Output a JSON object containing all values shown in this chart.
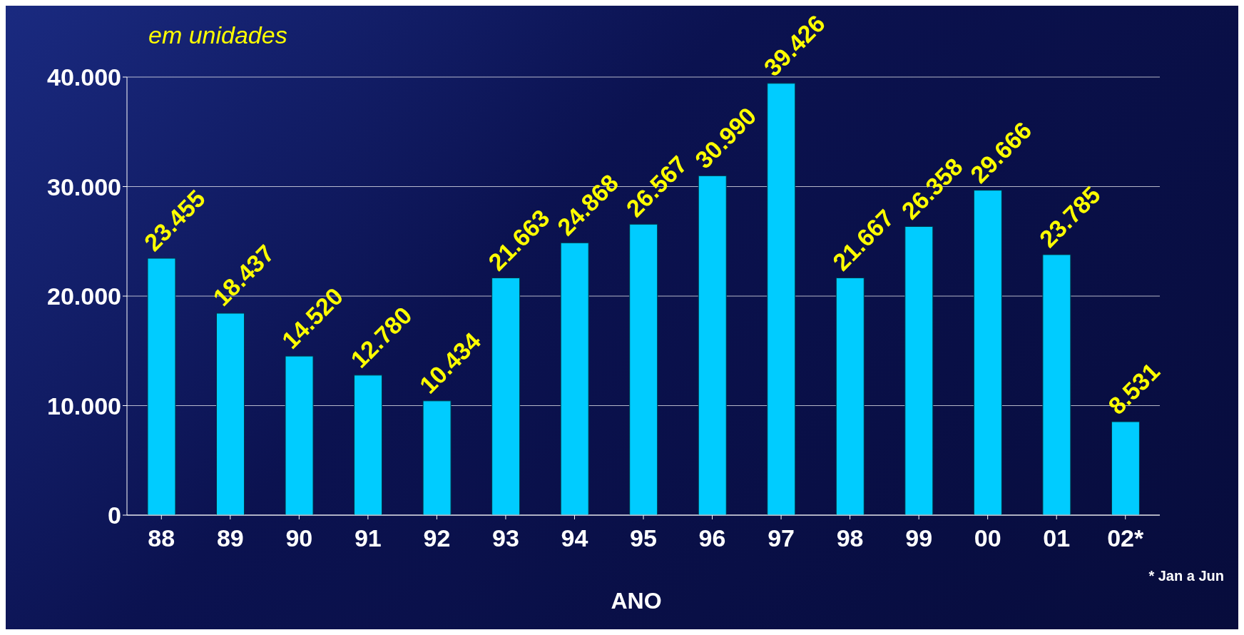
{
  "chart_data": {
    "type": "bar",
    "ylabel": "em unidades",
    "xlabel": "ANO",
    "annotations": [
      "* Jan a Jun"
    ],
    "categories": [
      "88",
      "89",
      "90",
      "91",
      "92",
      "93",
      "94",
      "95",
      "96",
      "97",
      "98",
      "99",
      "00",
      "01",
      "02*"
    ],
    "values": [
      23455,
      18437,
      14520,
      12780,
      10434,
      21663,
      24868,
      26567,
      30990,
      39426,
      21667,
      26358,
      29666,
      23785,
      8531
    ],
    "value_labels": [
      "23.455",
      "18.437",
      "14.520",
      "12.780",
      "10.434",
      "21.663",
      "24.868",
      "26.567",
      "30.990",
      "39.426",
      "21.667",
      "26.358",
      "29.666",
      "23.785",
      "8.531"
    ],
    "color": "#00ccff",
    "ylim": [
      0,
      40000
    ],
    "yticks": [
      {
        "value": 0,
        "label": "0"
      },
      {
        "value": 10000,
        "label": "10.000"
      },
      {
        "value": 20000,
        "label": "20.000"
      },
      {
        "value": 30000,
        "label": "30.000"
      },
      {
        "value": 40000,
        "label": "40.000"
      }
    ],
    "grid": "y"
  }
}
